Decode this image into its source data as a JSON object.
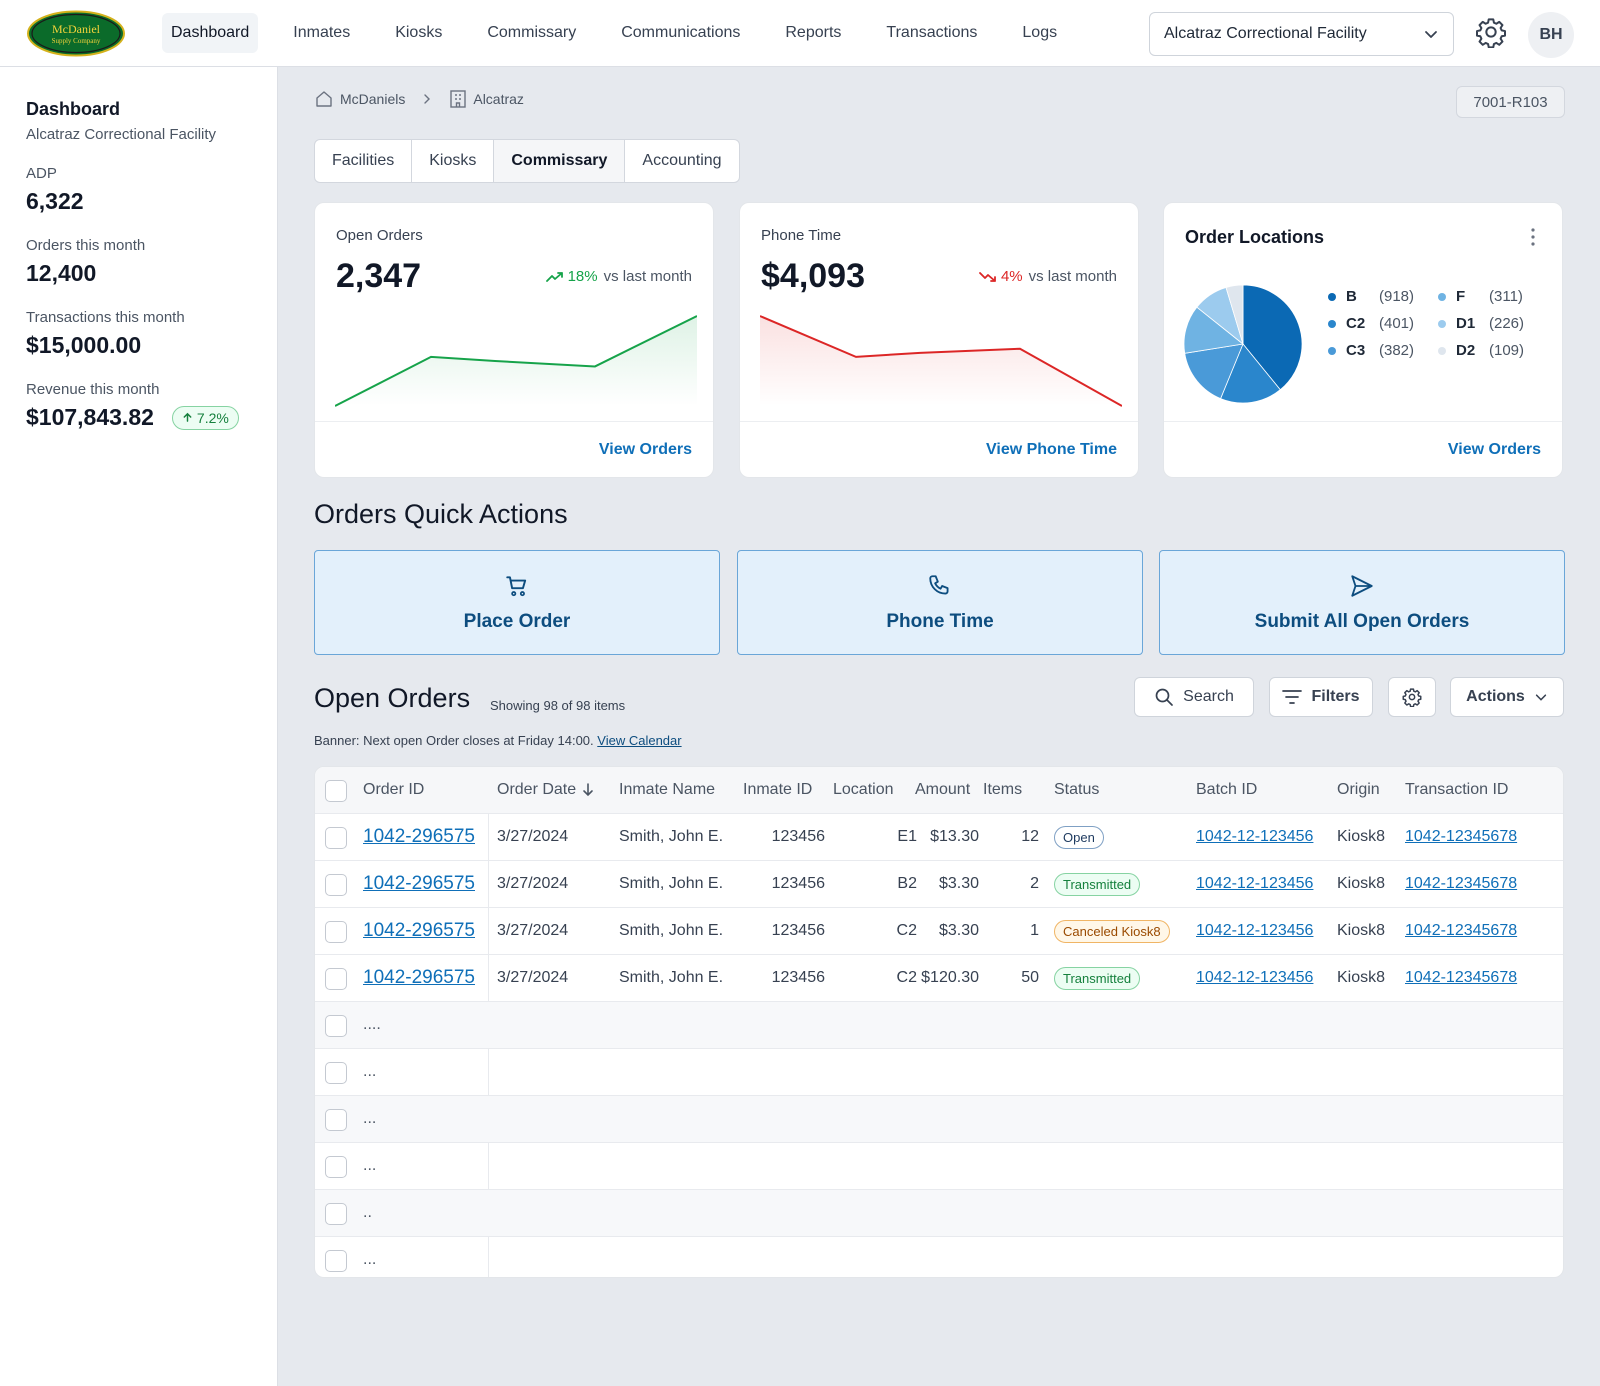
{
  "app": {
    "logo_text_1": "McDaniel",
    "logo_text_2": "Supply Company",
    "nav": [
      "Dashboard",
      "Inmates",
      "Kiosks",
      "Commissary",
      "Communications",
      "Reports",
      "Transactions",
      "Logs"
    ],
    "facility_select": "Alcatraz Correctional Facility",
    "avatar": "BH"
  },
  "sidebar": {
    "title": "Dashboard",
    "subtitle": "Alcatraz Correctional Facility",
    "stats": [
      {
        "label": "ADP",
        "value": "6,322"
      },
      {
        "label": "Orders this month",
        "value": "12,400"
      },
      {
        "label": "Transactions this month",
        "value": "$15,000.00"
      },
      {
        "label": "Revenue this month",
        "value": "$107,843.82",
        "badge": "7.2%"
      }
    ]
  },
  "breadcrumb": {
    "items": [
      "McDaniels",
      "Alcatraz"
    ]
  },
  "code_pill": "7001-R103",
  "tabs": [
    "Facilities",
    "Kiosks",
    "Commissary",
    "Accounting"
  ],
  "cards": {
    "open_orders": {
      "title": "Open Orders",
      "value": "2,347",
      "delta": "18%",
      "delta_text": "vs last month",
      "link": "View Orders"
    },
    "phone_time": {
      "title": "Phone Time",
      "value": "$4,093",
      "delta": "4%",
      "delta_text": "vs last month",
      "link": "View Phone Time"
    },
    "order_locations": {
      "title": "Order Locations",
      "link": "View Orders",
      "legend": [
        {
          "name": "B",
          "count": "(918)",
          "color": "#0b69b4"
        },
        {
          "name": "F",
          "count": "(311)",
          "color": "#6fb3e3"
        },
        {
          "name": "C2",
          "count": "(401)",
          "color": "#2a86cc"
        },
        {
          "name": "D1",
          "count": "(226)",
          "color": "#9ccbee"
        },
        {
          "name": "C3",
          "count": "(382)",
          "color": "#4a9ad8"
        },
        {
          "name": "D2",
          "count": "(109)",
          "color": "#dfe6ee"
        }
      ]
    }
  },
  "chart_data": [
    {
      "type": "line",
      "title": "Open Orders",
      "x": [
        0,
        1,
        2,
        3,
        4
      ],
      "values": [
        1,
        4.6,
        4.3,
        3.9,
        7.6
      ],
      "color": "#16a34a"
    },
    {
      "type": "line",
      "title": "Phone Time",
      "x": [
        0,
        1,
        2,
        3,
        4
      ],
      "values": [
        7.6,
        4.6,
        4.9,
        5.2,
        1
      ],
      "color": "#dc2626"
    },
    {
      "type": "pie",
      "title": "Order Locations",
      "categories": [
        "B",
        "C2",
        "C3",
        "F",
        "D1",
        "D2"
      ],
      "values": [
        918,
        401,
        382,
        311,
        226,
        109
      ]
    }
  ],
  "quick_actions": {
    "title": "Orders Quick Actions",
    "items": [
      {
        "label": "Place Order",
        "icon": "cart-icon"
      },
      {
        "label": "Phone Time",
        "icon": "phone-icon"
      },
      {
        "label": "Submit All Open Orders",
        "icon": "send-icon"
      }
    ]
  },
  "open_orders": {
    "title": "Open Orders",
    "showing": "Showing 98 of 98 items",
    "search": "Search",
    "filters": "Filters",
    "actions": "Actions",
    "banner_text": "Banner: Next open Order closes at Friday 14:00.",
    "banner_link": "View Calendar",
    "columns": [
      "Order ID",
      "Order Date",
      "Inmate Name",
      "Inmate ID",
      "Location",
      "Amount",
      "Items",
      "Status",
      "Batch ID",
      "Origin",
      "Transaction ID"
    ],
    "rows": [
      {
        "order_id": "1042-296575",
        "date": "3/27/2024",
        "name": "Smith, John E.",
        "inmate_id": "123456",
        "location": "E1",
        "amount": "$13.30",
        "items": "12",
        "status": "Open",
        "batch": "1042-12-123456",
        "origin": "Kiosk8",
        "txn": "1042-12345678"
      },
      {
        "order_id": "1042-296575",
        "date": "3/27/2024",
        "name": "Smith, John E.",
        "inmate_id": "123456",
        "location": "B2",
        "amount": "$3.30",
        "items": "2",
        "status": "Transmitted",
        "batch": "1042-12-123456",
        "origin": "Kiosk8",
        "txn": "1042-12345678"
      },
      {
        "order_id": "1042-296575",
        "date": "3/27/2024",
        "name": "Smith, John E.",
        "inmate_id": "123456",
        "location": "C2",
        "amount": "$3.30",
        "items": "1",
        "status": "Canceled Kiosk8",
        "batch": "1042-12-123456",
        "origin": "Kiosk8",
        "txn": "1042-12345678"
      },
      {
        "order_id": "1042-296575",
        "date": "3/27/2024",
        "name": "Smith, John E.",
        "inmate_id": "123456",
        "location": "C2",
        "amount": "$120.30",
        "items": "50",
        "status": "Transmitted",
        "batch": "1042-12-123456",
        "origin": "Kiosk8",
        "txn": "1042-12345678"
      }
    ],
    "placeholder_rows": [
      "....",
      "...",
      "...",
      "...",
      "..",
      "..."
    ]
  }
}
